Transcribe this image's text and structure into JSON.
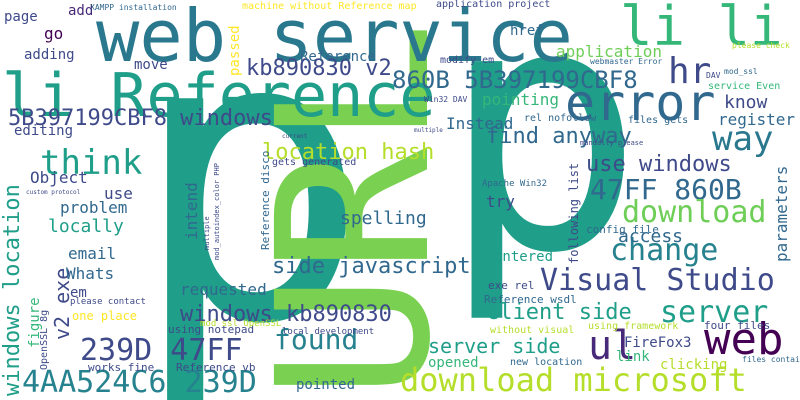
{
  "palette": {
    "teal": "#1f9e89",
    "navy": "#3e4a89",
    "green": "#6ece58",
    "lime": "#b5de2b",
    "yellow": "#fde725",
    "purple": "#440154",
    "blue": "#31688e",
    "cyan": "#26828e",
    "background": "#ffffff"
  },
  "words": [
    {
      "text": "p",
      "color": "#1f9e89"
    },
    {
      "text": "p",
      "color": "#1f9e89"
    },
    {
      "text": "URL",
      "color": "#7ad151"
    },
    {
      "text": "web service",
      "color": "#2a788e"
    },
    {
      "text": "li Reference",
      "color": "#1f9e89"
    },
    {
      "text": "li li",
      "color": "#35b779"
    },
    {
      "text": "error",
      "color": "#31688e"
    },
    {
      "text": "hr",
      "color": "#3e4a89"
    },
    {
      "text": "way",
      "color": "#2a788e"
    },
    {
      "text": "think",
      "color": "#1f9e89"
    },
    {
      "text": "kb890830 v2",
      "color": "#3e4a89"
    },
    {
      "text": "860B 5B397199CBF8",
      "color": "#31688e"
    },
    {
      "text": "5B397199CBF8 windows",
      "color": "#3e4a89"
    },
    {
      "text": "location hash",
      "color": "#b5de2b"
    },
    {
      "text": "47FF 860B",
      "color": "#31688e"
    },
    {
      "text": "download",
      "color": "#6ece58"
    },
    {
      "text": "change",
      "color": "#26828e"
    },
    {
      "text": "Visual Studio",
      "color": "#3e4a89"
    },
    {
      "text": "server",
      "color": "#1f9e89"
    },
    {
      "text": "side javascript",
      "color": "#31688e"
    },
    {
      "text": "found",
      "color": "#26828e"
    },
    {
      "text": "windows kb890830",
      "color": "#3e4a89"
    },
    {
      "text": "239D 47FF",
      "color": "#3e4a89"
    },
    {
      "text": "web",
      "color": "#440154"
    },
    {
      "text": "ul",
      "color": "#482878"
    },
    {
      "text": "4AA524C6 239D",
      "color": "#26828e"
    },
    {
      "text": "download microsoft",
      "color": "#b5de2b"
    },
    {
      "text": "windows location",
      "color": "#1f9e89"
    },
    {
      "text": "v2 exe",
      "color": "#3e4a89"
    },
    {
      "text": "Reference",
      "color": "#31688e"
    },
    {
      "text": "client side",
      "color": "#1f9e89"
    },
    {
      "text": "server side",
      "color": "#1f9e89"
    },
    {
      "text": "spelling",
      "color": "#31688e"
    },
    {
      "text": "use windows",
      "color": "#3e4a89"
    },
    {
      "text": "find anyway",
      "color": "#31688e"
    },
    {
      "text": "know",
      "color": "#3e4a89"
    },
    {
      "text": "register",
      "color": "#31688e"
    },
    {
      "text": "Instead",
      "color": "#31688e"
    },
    {
      "text": "application",
      "color": "#6ece58"
    },
    {
      "text": "pointing",
      "color": "#35b779"
    },
    {
      "text": "move",
      "color": "#3e4a89"
    },
    {
      "text": "adding",
      "color": "#3e4a89"
    },
    {
      "text": "go",
      "color": "#440154"
    },
    {
      "text": "page",
      "color": "#3e4a89"
    },
    {
      "text": "add",
      "color": "#482878"
    },
    {
      "text": "href",
      "color": "#31688e"
    },
    {
      "text": "passed",
      "color": "#fde725"
    },
    {
      "text": "editing",
      "color": "#3e4a89"
    },
    {
      "text": "Object",
      "color": "#3e4a89"
    },
    {
      "text": "locally",
      "color": "#1f9e89"
    },
    {
      "text": "problem",
      "color": "#31688e"
    },
    {
      "text": "use",
      "color": "#3e4a89"
    },
    {
      "text": "email",
      "color": "#31688e"
    },
    {
      "text": "Whats",
      "color": "#31688e"
    },
    {
      "text": "em",
      "color": "#3e4a89"
    },
    {
      "text": "figure",
      "color": "#35b779"
    },
    {
      "text": "access",
      "color": "#31688e"
    },
    {
      "text": "try",
      "color": "#3e4a89"
    },
    {
      "text": "entered",
      "color": "#1f9e89"
    },
    {
      "text": "requested",
      "color": "#31688e"
    },
    {
      "text": "opened",
      "color": "#35b779"
    },
    {
      "text": "link",
      "color": "#35b779"
    },
    {
      "text": "FireFox3",
      "color": "#3e4a89"
    },
    {
      "text": "clicking",
      "color": "#b5de2b"
    },
    {
      "text": "intend",
      "color": "#31688e"
    },
    {
      "text": "parameters",
      "color": "#31688e"
    },
    {
      "text": "pointed",
      "color": "#31688e"
    },
    {
      "text": "works fine",
      "color": "#3e4a89"
    },
    {
      "text": "one place",
      "color": "#fde725"
    },
    {
      "text": "using notepad",
      "color": "#3e4a89"
    },
    {
      "text": "four files",
      "color": "#3e4a89"
    },
    {
      "text": "exe rel",
      "color": "#3e4a89"
    },
    {
      "text": "Reference wsdl",
      "color": "#31688e"
    },
    {
      "text": "new location",
      "color": "#31688e"
    },
    {
      "text": "Reference vb",
      "color": "#3e4a89"
    },
    {
      "text": "config file",
      "color": "#31688e"
    },
    {
      "text": "machine without Reference map",
      "color": "#fde725"
    },
    {
      "text": "application project",
      "color": "#3e4a89"
    },
    {
      "text": "XAMPP installation",
      "color": "#31688e"
    },
    {
      "text": "modify em",
      "color": "#3e4a89"
    },
    {
      "text": "webmaster Error",
      "color": "#31688e"
    },
    {
      "text": "mod_ssl",
      "color": "#31688e"
    },
    {
      "text": "DAV",
      "color": "#3e4a89"
    },
    {
      "text": "service Even",
      "color": "#35b779"
    },
    {
      "text": "Win32 DAV",
      "color": "#3e4a89"
    },
    {
      "text": "rel nofollow",
      "color": "#31688e"
    },
    {
      "text": "files gets",
      "color": "#31688e"
    },
    {
      "text": "please check",
      "color": "#b5de2b"
    },
    {
      "text": "gets generated",
      "color": "#3e4a89"
    },
    {
      "text": "Reference disco",
      "color": "#31688e"
    },
    {
      "text": "following list",
      "color": "#3e4a89"
    },
    {
      "text": "Apache Win32",
      "color": "#31688e"
    },
    {
      "text": "without visual",
      "color": "#b5de2b"
    },
    {
      "text": "using framework",
      "color": "#b5de2b"
    },
    {
      "text": "mod ssl OpenSSL",
      "color": "#b5de2b"
    },
    {
      "text": "local development",
      "color": "#3e4a89"
    },
    {
      "text": "please contact",
      "color": "#3e4a89"
    },
    {
      "text": "files contains",
      "color": "#3e4a89"
    },
    {
      "text": "OpenSSL 8g",
      "color": "#31688e"
    },
    {
      "text": "custom protocol",
      "color": "#3e4a89"
    },
    {
      "text": "manually please",
      "color": "#3e4a89"
    },
    {
      "text": "current",
      "color": "#3e4a89"
    },
    {
      "text": "multiple",
      "color": "#3e4a89"
    },
    {
      "text": "mod_autoindex_color PHP",
      "color": "#3e4a89"
    },
    {
      "text": "8g mod_autoindex_color",
      "color": "#3e4a89"
    }
  ]
}
